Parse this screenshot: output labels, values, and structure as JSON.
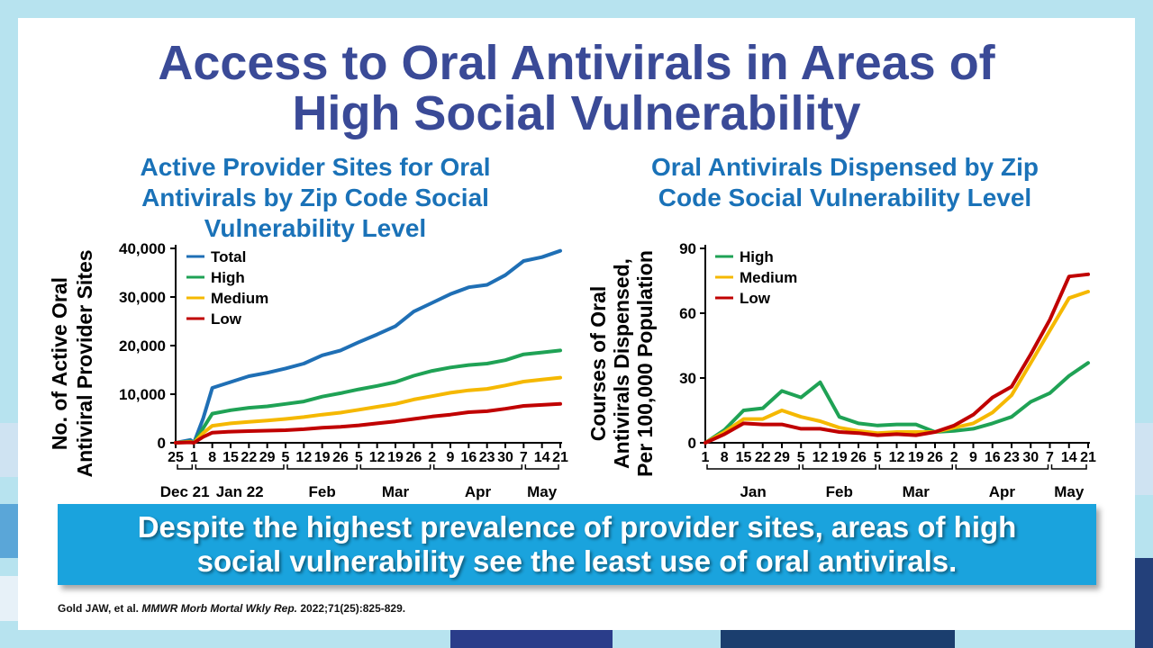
{
  "slide": {
    "title_line1": "Access to Oral Antivirals in Areas of",
    "title_line2": "High Social Vulnerability",
    "banner_line1": "Despite the highest prevalence of provider sites, areas of high",
    "banner_line2": "social vulnerability see the least use of oral antivirals.",
    "citation_authors": "Gold JAW,  et al. ",
    "citation_journal": "MMWR Morb Mortal Wkly Rep.",
    "citation_ref": " 2022;71(25):825-829.",
    "colors": {
      "title": "#3a4a97",
      "chart_title": "#1a72b8",
      "banner": "#1aa3dd",
      "background": "#b7e3ef"
    }
  },
  "chart_data": [
    {
      "type": "line",
      "title_lines": [
        "Active Provider Sites for Oral",
        "Antivirals by Zip Code Social",
        "Vulnerability Level"
      ],
      "ylabel_lines": [
        "No. of Active Oral",
        "Antiviral Provider Sites"
      ],
      "ylim": [
        0,
        40000
      ],
      "yticks": [
        0,
        10000,
        20000,
        30000,
        40000
      ],
      "ytick_labels": [
        "0",
        "10,000",
        "20,000",
        "30,000",
        "40,000"
      ],
      "x_tick_labels": [
        "25",
        "1",
        "8",
        "15",
        "22",
        "29",
        "5",
        "12",
        "19",
        "26",
        "5",
        "12",
        "19",
        "26",
        "2",
        "9",
        "16",
        "23",
        "30",
        "7",
        "14",
        "21"
      ],
      "months": [
        "Dec 21",
        "Jan 22",
        "Feb",
        "Mar",
        "Apr",
        "May"
      ],
      "month_spans": [
        [
          0,
          1
        ],
        [
          1,
          6
        ],
        [
          6,
          10
        ],
        [
          10,
          14
        ],
        [
          14,
          19
        ],
        [
          19,
          21
        ]
      ],
      "legend": [
        "Total",
        "High",
        "Medium",
        "Low"
      ],
      "series": [
        {
          "name": "Total",
          "color": "#1f6fb5",
          "x": [
            0,
            0.8,
            1,
            1.5,
            2,
            3,
            4,
            5,
            6,
            7,
            8,
            9,
            10,
            11,
            12,
            13,
            14,
            15,
            16,
            17,
            18,
            19,
            20,
            21
          ],
          "values": [
            0,
            600,
            0,
            5000,
            11300,
            12500,
            13700,
            14400,
            15300,
            16300,
            18000,
            19000,
            20700,
            22300,
            24000,
            27000,
            28800,
            30600,
            32000,
            32500,
            34500,
            37400,
            38200,
            39500
          ]
        },
        {
          "name": "High",
          "color": "#1fa255",
          "x": [
            0,
            0.8,
            1,
            1.5,
            2,
            3,
            4,
            5,
            6,
            7,
            8,
            9,
            10,
            11,
            12,
            13,
            14,
            15,
            16,
            17,
            18,
            19,
            20,
            21
          ],
          "values": [
            0,
            300,
            0,
            3000,
            6000,
            6700,
            7200,
            7500,
            8000,
            8500,
            9500,
            10200,
            11000,
            11700,
            12500,
            13800,
            14800,
            15500,
            16000,
            16300,
            17000,
            18200,
            18600,
            19000
          ]
        },
        {
          "name": "Medium",
          "color": "#f5b800",
          "x": [
            0,
            0.8,
            1,
            1.5,
            2,
            3,
            4,
            5,
            6,
            7,
            8,
            9,
            10,
            11,
            12,
            13,
            14,
            15,
            16,
            17,
            18,
            19,
            20,
            21
          ],
          "values": [
            0,
            200,
            0,
            2000,
            3500,
            4000,
            4300,
            4600,
            4900,
            5300,
            5800,
            6200,
            6800,
            7400,
            8000,
            8900,
            9600,
            10300,
            10800,
            11100,
            11800,
            12600,
            13000,
            13400
          ]
        },
        {
          "name": "Low",
          "color": "#c00000",
          "x": [
            0,
            0.8,
            1,
            1.5,
            2,
            3,
            4,
            5,
            6,
            7,
            8,
            9,
            10,
            11,
            12,
            13,
            14,
            15,
            16,
            17,
            18,
            19,
            20,
            21
          ],
          "values": [
            0,
            100,
            0,
            1200,
            2100,
            2300,
            2400,
            2500,
            2600,
            2800,
            3100,
            3300,
            3600,
            4000,
            4400,
            4900,
            5400,
            5800,
            6300,
            6500,
            7000,
            7600,
            7800,
            8000
          ]
        }
      ]
    },
    {
      "type": "line",
      "title_lines": [
        "Oral Antivirals Dispensed by Zip",
        "Code Social Vulnerability Level"
      ],
      "ylabel_lines": [
        "Courses of Oral",
        "Antivirals Dispensed,",
        "Per 100,000 Population"
      ],
      "ylim": [
        0,
        90
      ],
      "yticks": [
        0,
        30,
        60,
        90
      ],
      "ytick_labels": [
        "0",
        "30",
        "60",
        "90"
      ],
      "x_tick_labels": [
        "1",
        "8",
        "15",
        "22",
        "29",
        "5",
        "12",
        "19",
        "26",
        "5",
        "12",
        "19",
        "26",
        "2",
        "9",
        "16",
        "23",
        "30",
        "7",
        "14",
        "21"
      ],
      "months": [
        "Jan",
        "Feb",
        "Mar",
        "Apr",
        "May"
      ],
      "month_spans": [
        [
          0,
          5
        ],
        [
          5,
          9
        ],
        [
          9,
          13
        ],
        [
          13,
          18
        ],
        [
          18,
          20
        ]
      ],
      "legend": [
        "High",
        "Medium",
        "Low"
      ],
      "series": [
        {
          "name": "High",
          "color": "#1fa255",
          "x": [
            0,
            1,
            2,
            3,
            4,
            5,
            6,
            7,
            8,
            9,
            10,
            11,
            12,
            13,
            14,
            15,
            16,
            17,
            18,
            19,
            20
          ],
          "values": [
            0,
            6,
            15,
            16,
            24,
            21,
            28,
            12,
            9,
            8,
            8.5,
            8.5,
            5,
            5.5,
            6.5,
            9,
            12,
            19,
            23,
            31,
            37
          ]
        },
        {
          "name": "Medium",
          "color": "#f5b800",
          "x": [
            0,
            1,
            2,
            3,
            4,
            5,
            6,
            7,
            8,
            9,
            10,
            11,
            12,
            13,
            14,
            15,
            16,
            17,
            18,
            19,
            20
          ],
          "values": [
            0,
            5,
            11,
            11,
            15,
            12,
            10,
            7,
            5.5,
            4.5,
            5,
            5,
            5,
            7,
            9,
            14,
            22,
            37,
            52,
            67,
            70
          ]
        },
        {
          "name": "Low",
          "color": "#c00000",
          "x": [
            0,
            1,
            2,
            3,
            4,
            5,
            6,
            7,
            8,
            9,
            10,
            11,
            12,
            13,
            14,
            15,
            16,
            17,
            18,
            19,
            20
          ],
          "values": [
            0,
            4,
            9,
            8.5,
            8.5,
            6.5,
            6.5,
            5,
            4.5,
            3.5,
            4,
            3.5,
            5,
            8,
            13,
            21,
            26,
            41,
            57,
            77,
            78
          ]
        }
      ]
    }
  ]
}
